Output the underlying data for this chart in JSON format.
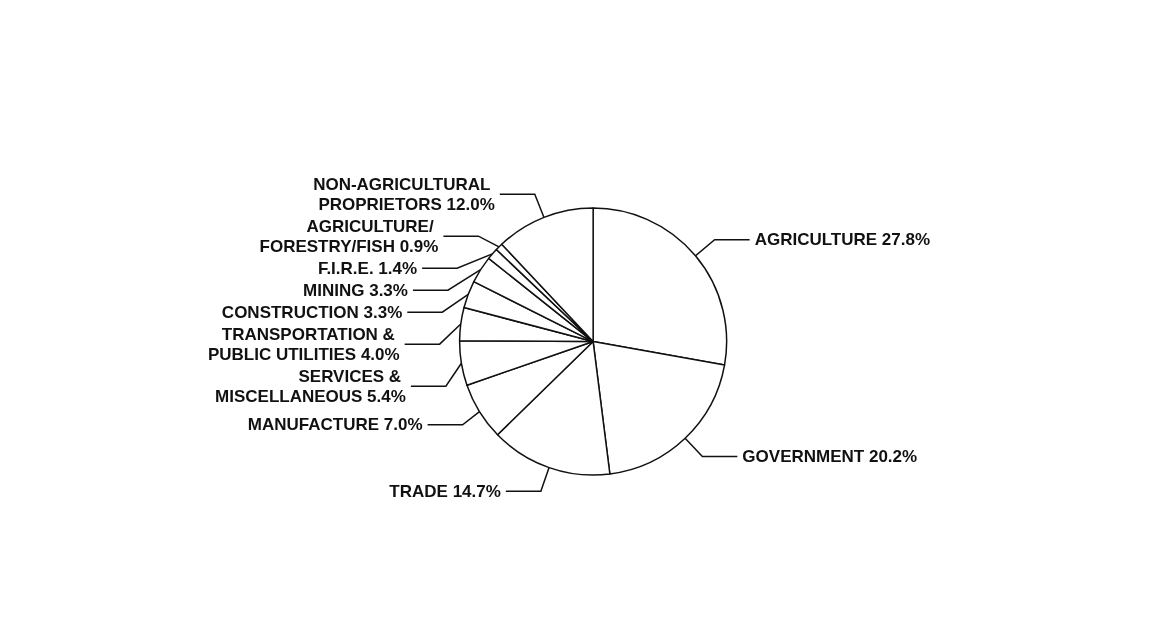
{
  "chart_data": {
    "type": "pie",
    "categories": [
      "AGRICULTURE",
      "GOVERNMENT",
      "TRADE",
      "MANUFACTURE",
      "SERVICES & MISCELLANEOUS",
      "TRANSPORTATION & PUBLIC UTILITIES",
      "CONSTRUCTION",
      "MINING",
      "F.I.R.E.",
      "AGRICULTURE/ FORESTRY/FISH",
      "NON-AGRICULTURAL PROPRIETORS"
    ],
    "values": [
      27.8,
      20.2,
      14.7,
      7.0,
      5.4,
      4.0,
      3.3,
      3.3,
      1.4,
      0.9,
      12.0
    ],
    "value_labels": [
      "27.8%",
      "20.2%",
      "14.7%",
      "7.0%",
      "5.4%",
      "4.0%",
      "3.3%",
      "3.3%",
      "1.4%",
      "0.9%",
      "12.0%"
    ],
    "colors": [
      "#ffffff",
      "#ffffff",
      "#ffffff",
      "#ffffff",
      "#ffffff",
      "#ffffff",
      "#ffffff",
      "#ffffff",
      "#ffffff",
      "#ffffff",
      "#ffffff"
    ],
    "legend": false
  }
}
